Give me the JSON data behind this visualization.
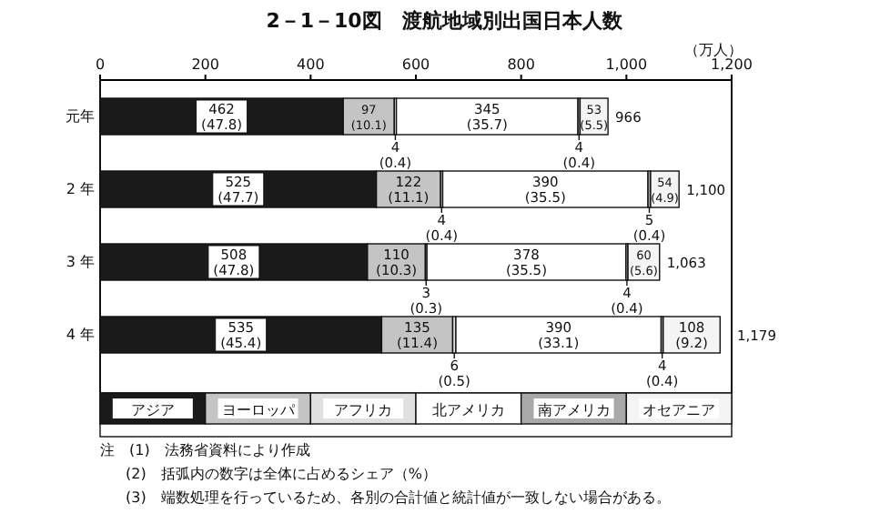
{
  "chart_data": {
    "type": "bar",
    "orientation": "horizontal",
    "stacked": true,
    "title": "2－1－10図　渡航地域別出国日本人数",
    "categories": [
      "元年",
      "2 年",
      "3 年",
      "4 年"
    ],
    "xlim": [
      0,
      1200
    ],
    "xticks": [
      0,
      200,
      400,
      600,
      800,
      {
        "value": 1000,
        "label": "1,000"
      },
      {
        "value": 1200,
        "label": "1,200"
      }
    ],
    "series": [
      {
        "name": "アジア",
        "color": "#1a1a1a",
        "values": [
          462,
          525,
          508,
          535
        ],
        "value_labels": [
          "462\n(47.8)",
          "525\n(47.7)",
          "508\n(47.8)",
          "535\n(45.4)"
        ]
      },
      {
        "name": "ヨーロッパ",
        "color": "#c4c4c4",
        "values": [
          97,
          122,
          110,
          135
        ],
        "value_labels": [
          "97\n(10.1)",
          "122\n(11.1)",
          "110\n(10.3)",
          "135\n(11.4)"
        ]
      },
      {
        "name": "アフリカ",
        "color": "#e0e0e0",
        "values": [
          4,
          4,
          3,
          6
        ],
        "value_labels": [
          "4\n(0.4)",
          "4\n(0.4)",
          "3\n(0.3)",
          "6\n(0.5)"
        ]
      },
      {
        "name": "北アメリカ",
        "color": "#ffffff",
        "values": [
          345,
          390,
          378,
          390
        ],
        "value_labels": [
          "345\n(35.7)",
          "390\n(35.5)",
          "378\n(35.5)",
          "390\n(33.1)"
        ]
      },
      {
        "name": "南アメリカ",
        "color": "#a8a8a8",
        "values": [
          4,
          5,
          4,
          4
        ],
        "value_labels": [
          "4\n(0.4)",
          "5\n(0.4)",
          "4\n(0.4)",
          "4\n(0.4)"
        ]
      },
      {
        "name": "オセアニア",
        "color": "#f4f4f4",
        "values": [
          53,
          54,
          60,
          108
        ],
        "value_labels": [
          "53\n(5.5)",
          "54\n(4.9)",
          "60\n(5.6)",
          "108\n(9.2)"
        ]
      }
    ],
    "totals": [
      "966",
      "1,100",
      "1,063",
      "1,179"
    ],
    "legend": "bottom",
    "annotations": [
      "（万人）",
      "注　(1)　法務省資料により作成",
      "(2)　括弧内の数字は全体に占めるシェア（%）",
      "(3)　端数処理を行っているため、各別の合計値と統計値が一致しない場合がある。"
    ]
  }
}
